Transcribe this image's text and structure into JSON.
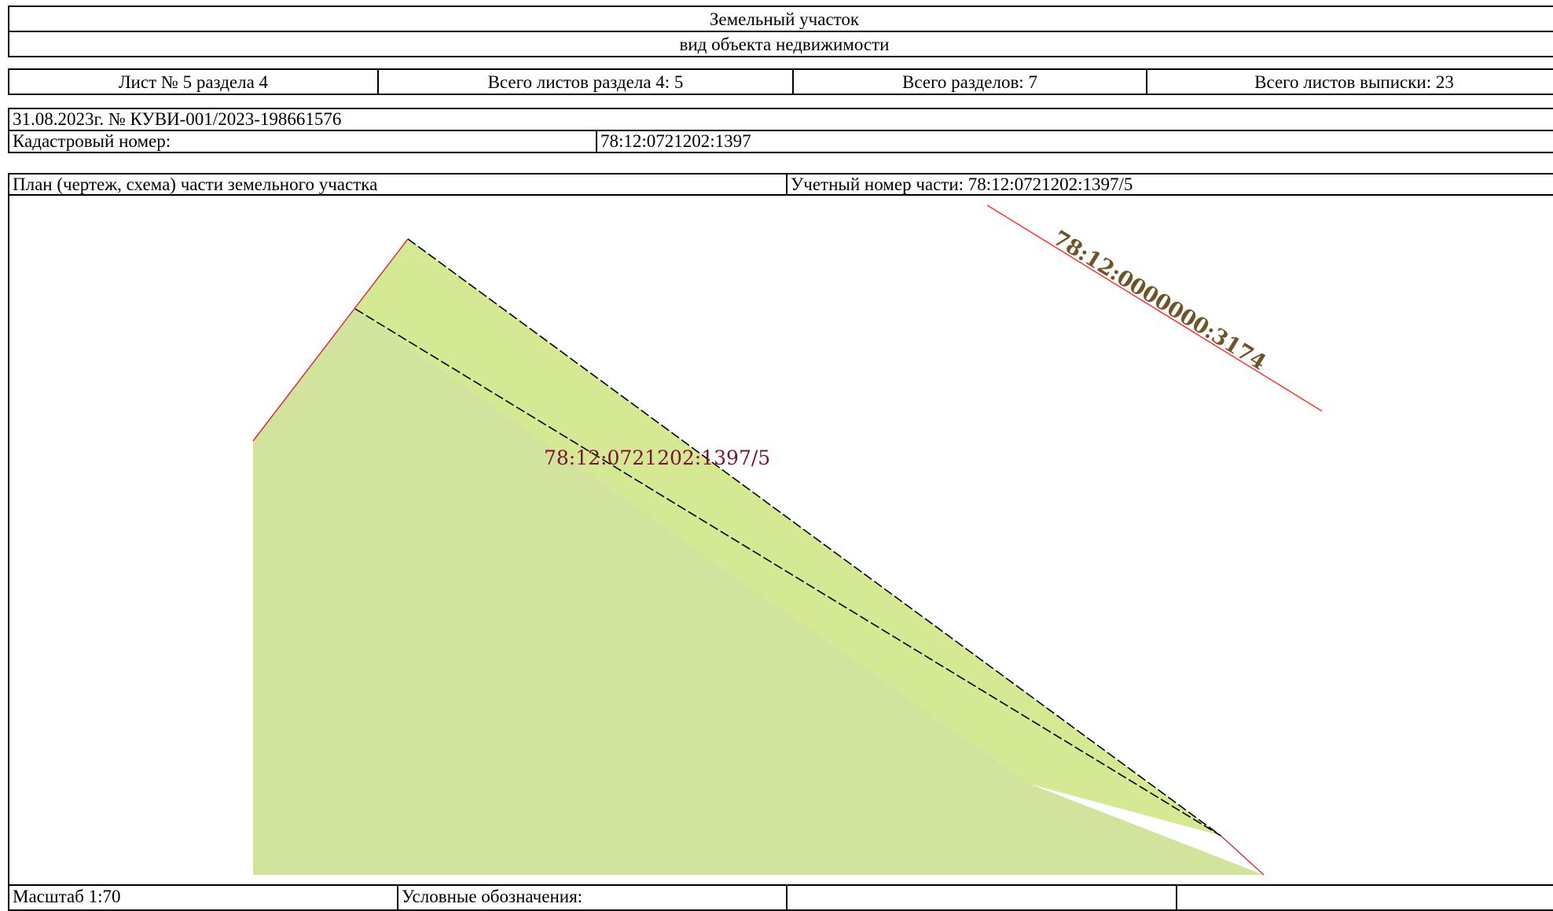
{
  "header": {
    "object_type": "Земельный участок",
    "object_type_caption": "вид объекта недвижимости"
  },
  "sheets": {
    "sheet_number": "Лист № 5 раздела 4",
    "total_sheets_section": "Всего листов раздела 4: 5",
    "total_sections": "Всего разделов: 7",
    "total_sheets_extract": "Всего листов выписки: 23"
  },
  "document": {
    "date_number": "31.08.2023г. № КУВИ-001/2023-198661576",
    "cadastral_label": "Кадастровый номер:",
    "cadastral_value": "78:12:0721202:1397"
  },
  "plan": {
    "title": "План (чертеж, схема) части земельного участка",
    "account_number": "Учетный номер части: 78:12:0721202:1397/5",
    "part_label": "78:12:0721202:1397/5",
    "neighbor_label": "78:12:0000000:3174",
    "colors": {
      "parcel_fill": "#d1e39c",
      "part_fill": "#d5e894",
      "boundary_red": "#ff3333",
      "part_label_color": "#7a1430",
      "neighbor_label_color": "#6e5428"
    }
  },
  "footer": {
    "scale": "Масштаб 1:70",
    "legend": "Условные обозначения:",
    "col3": "",
    "col4": ""
  }
}
